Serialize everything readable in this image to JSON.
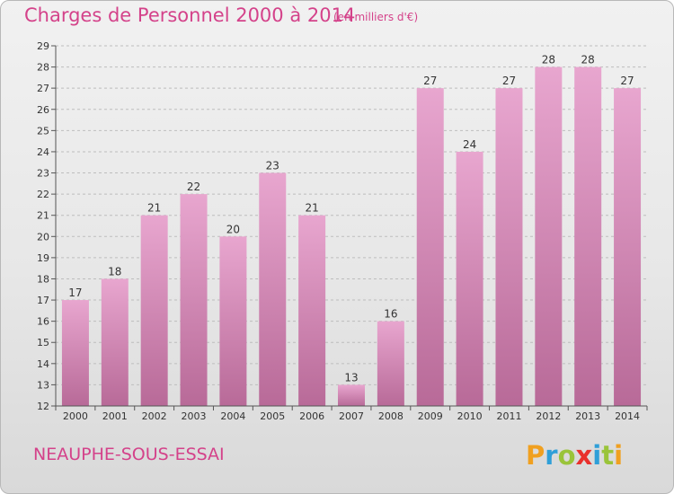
{
  "header": {
    "title": "Charges de Personnel 2000 à 2014",
    "subtitle": "(en milliers d'€)"
  },
  "footer": {
    "commune": "NEAUPHE-SOUS-ESSAI",
    "logo_text": "Proxiti"
  },
  "colors": {
    "accent": "#d4428a",
    "bar_top": "#e8a6cf",
    "bar_bottom": "#b86a98",
    "logo_letters": [
      "#f0a020",
      "#2f9fd8",
      "#9ac43a",
      "#e9302c",
      "#2f9fd8",
      "#9ac43a",
      "#f0a020"
    ]
  },
  "chart_data": {
    "type": "bar",
    "categories": [
      "2000",
      "2001",
      "2002",
      "2003",
      "2004",
      "2005",
      "2006",
      "2007",
      "2008",
      "2009",
      "2010",
      "2011",
      "2012",
      "2013",
      "2014"
    ],
    "values": [
      17,
      18,
      21,
      22,
      20,
      23,
      21,
      13,
      16,
      27,
      24,
      27,
      28,
      28,
      27
    ],
    "data_labels": [
      "17",
      "18",
      "21",
      "22",
      "20",
      "23",
      "21",
      "13",
      "16",
      "27",
      "24",
      "27",
      "28",
      "28",
      "27"
    ],
    "ylim": [
      12,
      29
    ],
    "yticks": [
      "12",
      "13",
      "14",
      "15",
      "16",
      "17",
      "18",
      "19",
      "20",
      "21",
      "22",
      "23",
      "24",
      "25",
      "26",
      "27",
      "28",
      "29"
    ],
    "grid": "horizontal dashed",
    "xlabel": "",
    "ylabel": ""
  }
}
